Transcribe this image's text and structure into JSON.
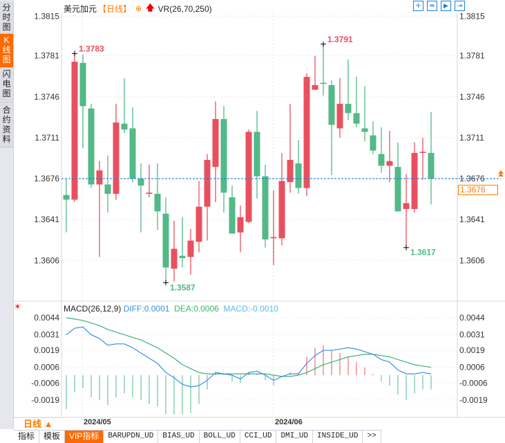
{
  "side_tabs": [
    {
      "label": "分时图"
    },
    {
      "label": "K线图",
      "active": true
    },
    {
      "label": "闪电图"
    },
    {
      "label": "合约资料"
    }
  ],
  "header": {
    "symbol": "美元加元",
    "period": "【日线】",
    "indicator": "VR(26,70,250)"
  },
  "toolbar": [
    "crosshair",
    "zoom-range",
    "play-forward",
    "jump-end"
  ],
  "colors": {
    "up": "#e9505f",
    "down": "#52b987",
    "diff": "#3a8ee6",
    "dea": "#3cb371",
    "macd": "#5bb8e8",
    "accent": "#ff6a00",
    "last_line": "#1a7fe0"
  },
  "last_price": "1.3676",
  "chart_data": [
    {
      "type": "candlestick",
      "title": "美元加元 日线",
      "y_ticks": [
        "1.3815",
        "1.3781",
        "1.3746",
        "1.3711",
        "1.3676",
        "1.3641",
        "1.3606"
      ],
      "ylim": [
        1.3575,
        1.3815
      ],
      "x_labels": [
        {
          "label": "2024/05",
          "index": 2
        },
        {
          "label": "2024/06",
          "index": 25
        }
      ],
      "annotations": [
        {
          "label": "1.3783",
          "index": 1,
          "kind": "high"
        },
        {
          "label": "1.3791",
          "index": 31,
          "kind": "high"
        },
        {
          "label": "1.3587",
          "index": 12,
          "kind": "low"
        },
        {
          "label": "1.3617",
          "index": 41,
          "kind": "low"
        }
      ],
      "ohlc": [
        [
          1.3662,
          1.3676,
          1.363,
          1.3658
        ],
        [
          1.3658,
          1.3783,
          1.3656,
          1.3776
        ],
        [
          1.3775,
          1.3782,
          1.3702,
          1.3738
        ],
        [
          1.3736,
          1.374,
          1.3668,
          1.3671
        ],
        [
          1.3671,
          1.3691,
          1.3609,
          1.3683
        ],
        [
          1.3671,
          1.3696,
          1.3647,
          1.3663
        ],
        [
          1.3663,
          1.374,
          1.3658,
          1.3724
        ],
        [
          1.3723,
          1.3762,
          1.3715,
          1.3718
        ],
        [
          1.3719,
          1.3737,
          1.3673,
          1.3676
        ],
        [
          1.3676,
          1.3689,
          1.363,
          1.367
        ],
        [
          1.3663,
          1.3688,
          1.366,
          1.3664
        ],
        [
          1.3663,
          1.3689,
          1.3632,
          1.3648
        ],
        [
          1.3646,
          1.366,
          1.3587,
          1.36
        ],
        [
          1.3599,
          1.364,
          1.3588,
          1.3616
        ],
        [
          1.361,
          1.3643,
          1.36,
          1.3608
        ],
        [
          1.3609,
          1.3633,
          1.3594,
          1.3623
        ],
        [
          1.3622,
          1.3674,
          1.3613,
          1.3652
        ],
        [
          1.3652,
          1.3697,
          1.3623,
          1.3692
        ],
        [
          1.3686,
          1.3742,
          1.3656,
          1.3727
        ],
        [
          1.3727,
          1.3738,
          1.3647,
          1.3664
        ],
        [
          1.366,
          1.367,
          1.3629,
          1.3629
        ],
        [
          1.363,
          1.3653,
          1.3613,
          1.3643
        ],
        [
          1.3639,
          1.3718,
          1.3638,
          1.3716
        ],
        [
          1.3716,
          1.3734,
          1.3659,
          1.3678
        ],
        [
          1.3678,
          1.3688,
          1.3617,
          1.3624
        ],
        [
          1.3625,
          1.3666,
          1.3602,
          1.3626
        ],
        [
          1.3625,
          1.3698,
          1.3619,
          1.3674
        ],
        [
          1.3673,
          1.374,
          1.3664,
          1.3692
        ],
        [
          1.3689,
          1.3709,
          1.3663,
          1.3668
        ],
        [
          1.3668,
          1.3766,
          1.3661,
          1.3763
        ],
        [
          1.3752,
          1.3781,
          1.3752,
          1.3756
        ],
        [
          1.3758,
          1.3791,
          1.3747,
          1.3757
        ],
        [
          1.3756,
          1.376,
          1.3679,
          1.3722
        ],
        [
          1.3719,
          1.3762,
          1.3711,
          1.374
        ],
        [
          1.374,
          1.3778,
          1.3726,
          1.3732
        ],
        [
          1.3732,
          1.3763,
          1.372,
          1.3723
        ],
        [
          1.3719,
          1.3755,
          1.3708,
          1.3716
        ],
        [
          1.3713,
          1.3725,
          1.3697,
          1.37
        ],
        [
          1.3697,
          1.372,
          1.3681,
          1.3687
        ],
        [
          1.3687,
          1.3717,
          1.3673,
          1.3691
        ],
        [
          1.3686,
          1.3707,
          1.3648,
          1.3648
        ],
        [
          1.365,
          1.368,
          1.3617,
          1.3655
        ],
        [
          1.365,
          1.3707,
          1.3647,
          1.3698
        ],
        [
          1.3698,
          1.3711,
          1.3675,
          1.3699
        ],
        [
          1.3698,
          1.3733,
          1.3654,
          1.3676
        ]
      ]
    },
    {
      "type": "macd",
      "title": "MACD(26,12,9)",
      "legend": {
        "diff": "DIFF:0.0001",
        "dea": "DEA:0.0006",
        "macd": "MACD:-0.0010"
      },
      "y_ticks": [
        "0.0044",
        "0.0031",
        "0.0019",
        "0.0006",
        "-0.0006",
        "-0.0019"
      ],
      "ylim": [
        -0.003,
        0.0046
      ],
      "diff": [
        0.0031,
        0.0036,
        0.0037,
        0.0031,
        0.0028,
        0.0023,
        0.0024,
        0.0024,
        0.0021,
        0.0017,
        0.0013,
        0.0009,
        0.0002,
        -0.0002,
        -0.0007,
        -0.0009,
        -0.0008,
        -0.0004,
        0.0002,
        0.0001,
        0.0,
        -0.0003,
        0.0002,
        0.0003,
        0.0,
        -0.0004,
        -0.0001,
        0.0001,
        0.0001,
        0.0009,
        0.0015,
        0.0019,
        0.0019,
        0.002,
        0.0021,
        0.002,
        0.0018,
        0.0016,
        0.0012,
        0.001,
        0.0004,
        0.0001,
        0.0001,
        0.0002,
        0.0001
      ],
      "dea": [
        0.0044,
        0.0043,
        0.0042,
        0.004,
        0.0038,
        0.0035,
        0.0033,
        0.0031,
        0.0029,
        0.0027,
        0.0024,
        0.0021,
        0.0017,
        0.0013,
        0.0008,
        0.0005,
        0.0002,
        0.0001,
        0.0001,
        0.0001,
        0.0001,
        0.0001,
        0.0001,
        0.0001,
        0.0001,
        0.0,
        -0.0001,
        -0.0001,
        0.0,
        0.0002,
        0.0005,
        0.0008,
        0.001,
        0.0012,
        0.0014,
        0.0015,
        0.0016,
        0.0016,
        0.0015,
        0.0014,
        0.0012,
        0.001,
        0.0008,
        0.0007,
        0.0006
      ],
      "histogram": [
        -0.0026,
        -0.0013,
        -0.001,
        -0.0017,
        -0.0019,
        -0.0023,
        -0.0017,
        -0.0014,
        -0.0017,
        -0.0019,
        -0.0022,
        -0.0024,
        -0.003,
        -0.003,
        -0.003,
        -0.0029,
        -0.0022,
        -0.0011,
        0.0001,
        0.0001,
        -0.0005,
        -0.0006,
        0.0002,
        0.0001,
        -0.0004,
        -0.0008,
        0.0,
        0.0002,
        0.0002,
        0.0014,
        0.0021,
        0.0023,
        0.0019,
        0.0017,
        0.0014,
        0.001,
        0.0006,
        0.0001,
        -0.0005,
        -0.0008,
        -0.0015,
        -0.0019,
        -0.0014,
        -0.0011,
        -0.0011
      ]
    }
  ],
  "footer": {
    "period_label": "日线 ▲",
    "tabs": [
      "指标",
      "模板",
      "VIP指标",
      "BARUPDN_UD",
      "BIAS_UD",
      "BOLL_UD",
      "CCI_UD",
      "DMI_UD",
      "INSIDE_UD",
      ">>"
    ]
  }
}
